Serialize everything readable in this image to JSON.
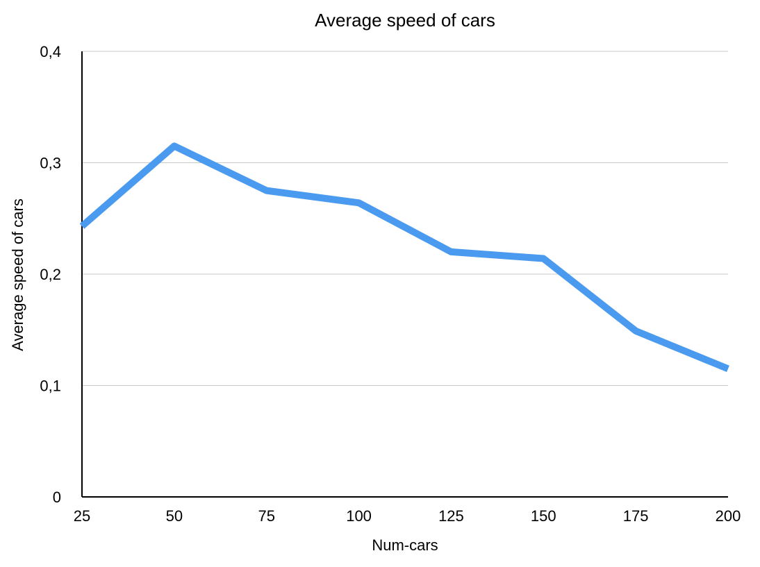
{
  "chart_data": {
    "type": "line",
    "title": "Average speed of cars",
    "xlabel": "Num-cars",
    "ylabel": "Average speed of cars",
    "categories": [
      "25",
      "50",
      "75",
      "100",
      "125",
      "150",
      "175",
      "200"
    ],
    "series": [
      {
        "values": [
          0.243,
          0.315,
          0.275,
          0.264,
          0.22,
          0.214,
          0.149,
          0.115
        ],
        "color": "#4A9AF0"
      }
    ],
    "x_tick_labels": [
      "25",
      "50",
      "75",
      "100",
      "125",
      "150",
      "175",
      "200"
    ],
    "y_tick_labels": [
      "0",
      "0,1",
      "0,2",
      "0,3",
      "0,4"
    ],
    "y_ticks": [
      0,
      0.1,
      0.2,
      0.3,
      0.4
    ],
    "ylim": [
      0,
      0.4
    ],
    "grid": true,
    "legend": "none",
    "colors": {
      "line": "#4A9AF0",
      "grid": "#c8c8c8",
      "axis": "#000000"
    }
  }
}
